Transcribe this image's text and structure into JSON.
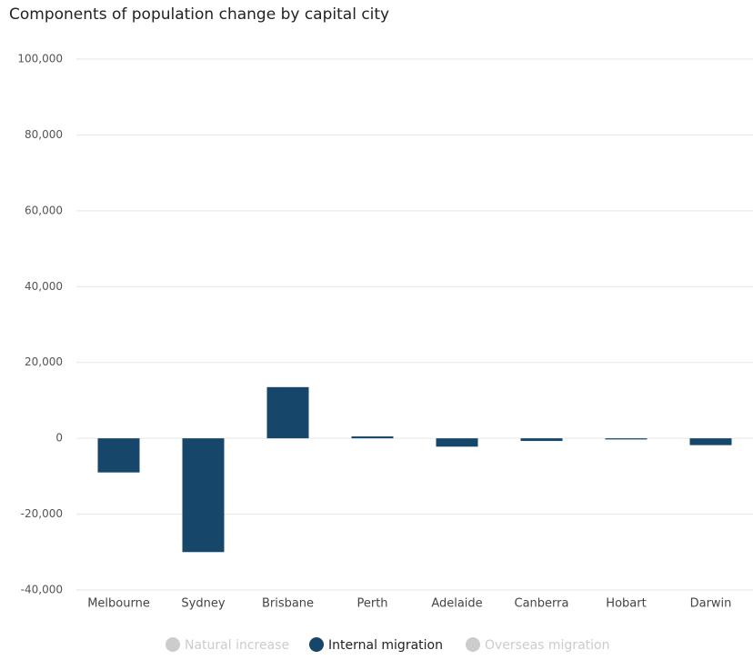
{
  "chart_data": {
    "type": "bar",
    "title": "Components of population change by capital city",
    "categories": [
      "Melbourne",
      "Sydney",
      "Brisbane",
      "Perth",
      "Adelaide",
      "Canberra",
      "Hobart",
      "Darwin"
    ],
    "series": [
      {
        "name": "Natural increase",
        "color": "#cccccc",
        "visible": false,
        "values": [
          null,
          null,
          null,
          null,
          null,
          null,
          null,
          null
        ]
      },
      {
        "name": "Internal migration",
        "color": "#16476b",
        "visible": true,
        "values": [
          -9000,
          -30000,
          13500,
          500,
          -2200,
          -700,
          -300,
          -1800
        ]
      },
      {
        "name": "Overseas migration",
        "color": "#cccccc",
        "visible": false,
        "values": [
          null,
          null,
          null,
          null,
          null,
          null,
          null,
          null
        ]
      }
    ],
    "ylim": [
      -40000,
      100000
    ],
    "yticks": [
      {
        "value": -40000,
        "label": "-40,000"
      },
      {
        "value": -20000,
        "label": "-20,000"
      },
      0,
      {
        "value": 20000,
        "label": "20,000"
      },
      {
        "value": 40000,
        "label": "40,000"
      },
      {
        "value": 60000,
        "label": "60,000"
      },
      {
        "value": 80000,
        "label": "80,000"
      },
      {
        "value": 100000,
        "label": "100,000"
      }
    ],
    "grid": true,
    "legend": "bottom"
  }
}
